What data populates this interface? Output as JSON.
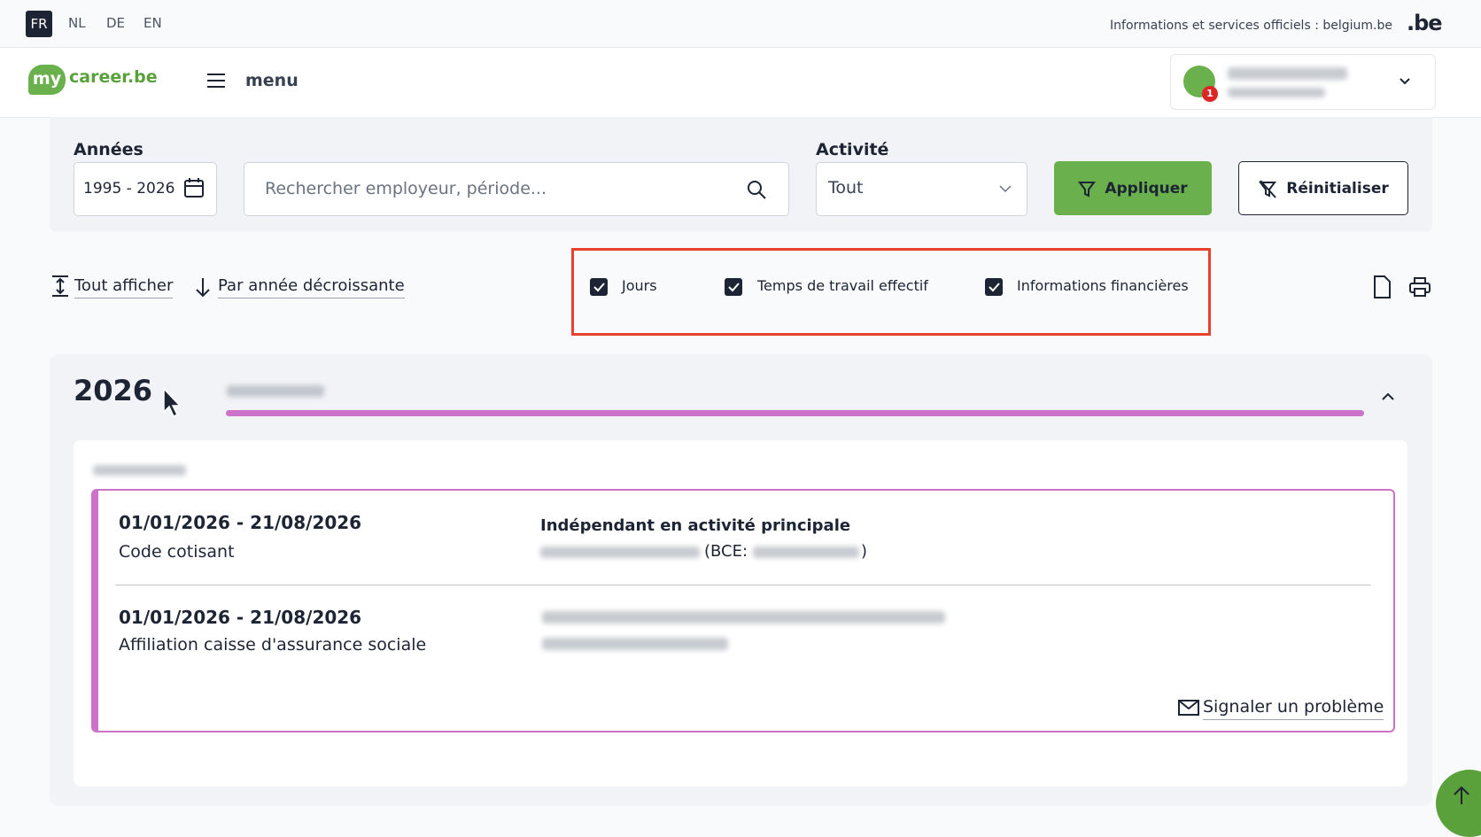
{
  "topbar": {
    "languages": [
      "FR",
      "NL",
      "DE",
      "EN"
    ],
    "official": "Informations et services officiels : belgium.be",
    "be_logo": ".be"
  },
  "nav": {
    "logo_my": "my",
    "logo_rest": "career.be",
    "menu": "menu",
    "badge": "1"
  },
  "filters": {
    "years_label": "Années",
    "years_value": "1995 - 2026",
    "search_placeholder": "Rechercher employeur, période...",
    "activity_label": "Activité",
    "activity_value": "Tout",
    "apply": "Appliquer",
    "reset": "Réinitialiser"
  },
  "toolbar": {
    "show_all": "Tout afficher",
    "sort": "Par année décroissante",
    "checkboxes": [
      "Jours",
      "Temps de travail effectif",
      "Informations financières"
    ]
  },
  "year": {
    "label": "2026",
    "entries": [
      {
        "period": "01/01/2026 - 21/08/2026",
        "type": "Code cotisant",
        "title": "Indépendant en activité principale",
        "bce": "(BCE:",
        "close": ")"
      },
      {
        "period": "01/01/2026 - 21/08/2026",
        "type": "Affiliation caisse d'assurance sociale"
      }
    ],
    "report": "Signaler un problème"
  }
}
